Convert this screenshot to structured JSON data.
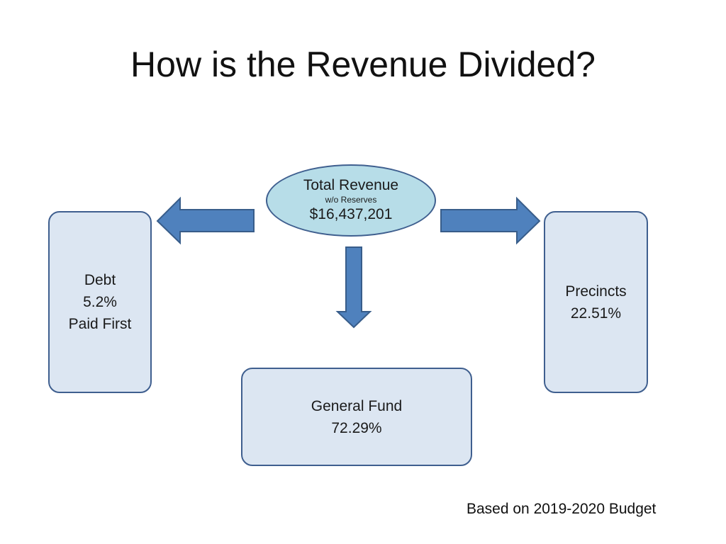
{
  "title": "How is the Revenue Divided?",
  "total_revenue": {
    "label": "Total Revenue",
    "sublabel": "w/o Reserves",
    "amount": "$16,437,201"
  },
  "debt": {
    "label": "Debt",
    "percent": "5.2%",
    "note": "Paid First"
  },
  "precincts": {
    "label": "Precincts",
    "percent": "22.51%"
  },
  "general_fund": {
    "label": "General Fund",
    "percent": "72.29%"
  },
  "footnote": "Based on 2019-2020 Budget",
  "colors": {
    "arrow_fill": "#4f81bd",
    "arrow_stroke": "#385d8a",
    "oval_fill": "#b7dde8",
    "box_fill": "#dce6f2",
    "border": "#3f5f8f"
  }
}
